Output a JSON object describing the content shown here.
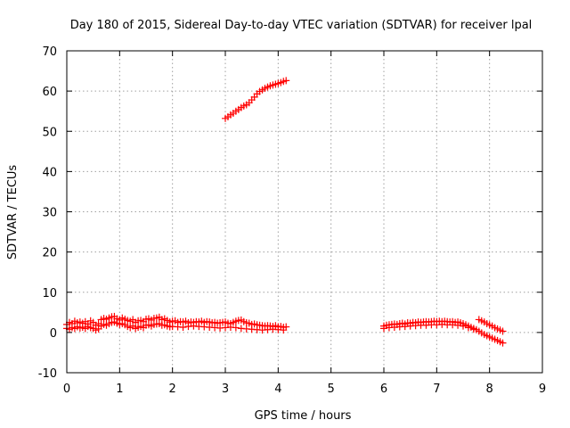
{
  "chart_data": {
    "type": "scatter",
    "title": "Day 180 of 2015, Sidereal Day-to-day VTEC variation (SDTVAR) for receiver lpal",
    "xlabel": "GPS time / hours",
    "ylabel": "SDTVAR / TECUs",
    "xlim": [
      0,
      9
    ],
    "ylim": [
      -10,
      70
    ],
    "xticks": [
      "0",
      "1",
      "2",
      "3",
      "4",
      "5",
      "6",
      "7",
      "8",
      "9"
    ],
    "yticks": [
      "-10",
      "0",
      "10",
      "20",
      "30",
      "40",
      "50",
      "60",
      "70"
    ],
    "grid": true,
    "marker": "plus",
    "color": "#ff0000",
    "series": [
      {
        "x": [
          0.0,
          0.05,
          0.1,
          0.15,
          0.2,
          0.25,
          0.3,
          0.35,
          0.4,
          0.45,
          0.5,
          0.55,
          0.6,
          0.65,
          0.7,
          0.75,
          0.8,
          0.85,
          0.9,
          0.95,
          1.0,
          1.05,
          1.1,
          1.15,
          1.2,
          1.25,
          1.3,
          1.35,
          1.4,
          1.45,
          1.5,
          1.55,
          1.6,
          1.65,
          1.7,
          1.75,
          1.8,
          1.85,
          1.9,
          1.95,
          2.0,
          2.05,
          2.1,
          2.15,
          2.2,
          2.25,
          2.3,
          2.35,
          2.4,
          2.45,
          2.5,
          2.55,
          2.6,
          2.65,
          2.7,
          2.75,
          2.8,
          2.85,
          2.9,
          2.95,
          3.0,
          3.05,
          3.1,
          3.15,
          3.2,
          3.25,
          3.3,
          3.35,
          3.4,
          3.45,
          3.5,
          3.55,
          3.6,
          3.65,
          3.7,
          3.75,
          3.8,
          3.85,
          3.9,
          3.95,
          4.0,
          4.05,
          4.1,
          4.15
        ],
        "y": [
          2.0,
          2.5,
          2.2,
          2.8,
          2.4,
          2.6,
          2.3,
          2.7,
          2.1,
          2.9,
          2.5,
          1.8,
          2.2,
          3.2,
          3.5,
          3.3,
          3.6,
          3.9,
          4.0,
          3.4,
          3.1,
          3.6,
          3.3,
          3.0,
          2.8,
          3.2,
          2.5,
          2.9,
          3.0,
          2.7,
          3.3,
          3.4,
          3.1,
          3.5,
          3.6,
          3.8,
          3.2,
          3.4,
          3.0,
          2.6,
          2.8,
          2.9,
          2.5,
          2.7,
          2.6,
          2.8,
          2.4,
          2.6,
          2.5,
          2.7,
          2.6,
          2.8,
          2.5,
          2.7,
          2.6,
          2.4,
          2.5,
          2.3,
          2.4,
          2.5,
          2.6,
          2.3,
          2.2,
          2.5,
          2.8,
          3.0,
          3.1,
          2.7,
          2.4,
          2.3,
          2.0,
          2.1,
          1.9,
          1.8,
          1.7,
          1.6,
          1.7,
          1.6,
          1.5,
          1.7,
          1.4,
          1.5,
          1.3,
          1.4
        ]
      },
      {
        "x": [
          0.0,
          0.05,
          0.1,
          0.15,
          0.2,
          0.25,
          0.3,
          0.35,
          0.4,
          0.45,
          0.5,
          0.55,
          0.6,
          0.65,
          0.7,
          0.75,
          0.8,
          0.85,
          0.9,
          0.95,
          1.0,
          1.05,
          1.1,
          1.15,
          1.2,
          1.25,
          1.3,
          1.35,
          1.4,
          1.45,
          1.5,
          1.55,
          1.6,
          1.65,
          1.7,
          1.75,
          1.8,
          1.85,
          1.9,
          1.95,
          2.0,
          2.1,
          2.2,
          2.3,
          2.4,
          2.5,
          2.6,
          2.7,
          2.8,
          2.9,
          3.0,
          3.1,
          3.2,
          3.3,
          3.4,
          3.5,
          3.6,
          3.7,
          3.8,
          3.9,
          4.0,
          4.1
        ],
        "y": [
          1.0,
          0.8,
          1.2,
          1.0,
          1.4,
          1.1,
          1.3,
          1.0,
          1.5,
          1.2,
          1.0,
          0.6,
          0.9,
          1.6,
          2.0,
          1.8,
          2.2,
          2.5,
          2.6,
          2.3,
          2.0,
          2.2,
          1.9,
          1.5,
          1.2,
          1.6,
          1.0,
          1.3,
          1.5,
          1.2,
          1.8,
          1.9,
          1.6,
          2.0,
          2.1,
          2.2,
          1.8,
          1.9,
          1.6,
          1.4,
          1.5,
          1.4,
          1.3,
          1.5,
          1.6,
          1.5,
          1.4,
          1.3,
          1.2,
          1.1,
          1.2,
          1.3,
          1.2,
          1.0,
          0.9,
          0.8,
          0.7,
          0.6,
          0.7,
          0.8,
          0.7,
          0.6
        ]
      },
      {
        "x": [
          3.0,
          3.05,
          3.1,
          3.15,
          3.2,
          3.25,
          3.3,
          3.35,
          3.4,
          3.45,
          3.5,
          3.55,
          3.6,
          3.65,
          3.7,
          3.75,
          3.8,
          3.85,
          3.9,
          3.95,
          4.0,
          4.05,
          4.1,
          4.15
        ],
        "y": [
          53.2,
          53.6,
          54.1,
          54.5,
          55.0,
          55.4,
          55.9,
          56.3,
          56.6,
          57.1,
          57.8,
          58.5,
          59.3,
          59.9,
          60.3,
          60.7,
          61.0,
          61.3,
          61.5,
          61.7,
          61.9,
          62.1,
          62.4,
          62.6
        ]
      },
      {
        "x": [
          6.0,
          6.05,
          6.1,
          6.15,
          6.2,
          6.25,
          6.3,
          6.35,
          6.4,
          6.45,
          6.5,
          6.55,
          6.6,
          6.65,
          6.7,
          6.75,
          6.8,
          6.85,
          6.9,
          6.95,
          7.0,
          7.05,
          7.1,
          7.15,
          7.2,
          7.25,
          7.3,
          7.35,
          7.4,
          7.45,
          7.5,
          7.55,
          7.6,
          7.65,
          7.7,
          7.75,
          7.8,
          7.85,
          7.9,
          7.95,
          8.0,
          8.05,
          8.1,
          8.15,
          8.2,
          8.25
        ],
        "y": [
          1.6,
          1.8,
          1.9,
          2.0,
          2.1,
          2.0,
          2.2,
          2.3,
          2.1,
          2.4,
          2.3,
          2.5,
          2.4,
          2.6,
          2.5,
          2.6,
          2.7,
          2.6,
          2.7,
          2.8,
          2.7,
          2.8,
          2.7,
          2.8,
          2.7,
          2.6,
          2.7,
          2.5,
          2.6,
          2.4,
          2.2,
          1.9,
          1.6,
          1.3,
          1.0,
          0.7,
          0.3,
          -0.1,
          -0.5,
          -0.8,
          -1.1,
          -1.4,
          -1.7,
          -2.0,
          -2.3,
          -2.6
        ]
      },
      {
        "x": [
          6.0,
          6.1,
          6.2,
          6.3,
          6.4,
          6.5,
          6.6,
          6.7,
          6.8,
          6.9,
          7.0,
          7.1,
          7.2,
          7.3,
          7.4,
          7.5,
          7.6,
          7.7,
          7.8,
          7.85,
          7.9,
          7.95,
          8.0,
          8.05,
          8.1,
          8.15,
          8.2,
          8.25
        ],
        "y": [
          1.0,
          1.2,
          1.3,
          1.4,
          1.5,
          1.6,
          1.7,
          1.8,
          1.8,
          1.9,
          1.9,
          2.0,
          1.9,
          1.9,
          1.8,
          1.6,
          1.2,
          0.8,
          3.2,
          2.9,
          2.6,
          2.2,
          1.9,
          1.6,
          1.2,
          0.9,
          0.6,
          0.3
        ]
      }
    ]
  }
}
